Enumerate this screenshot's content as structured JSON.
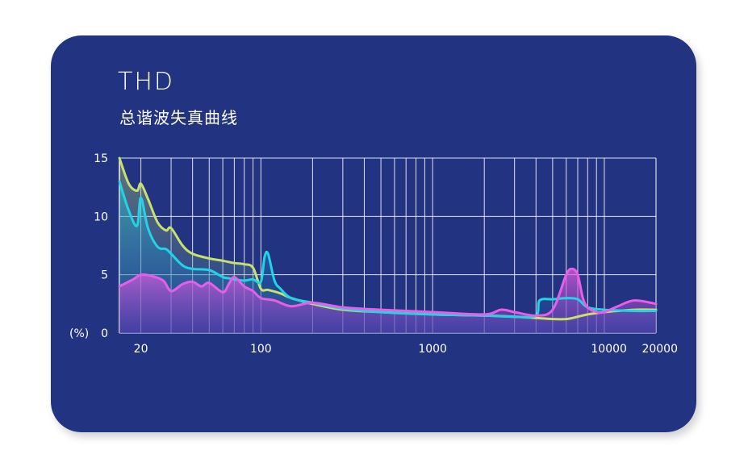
{
  "title": "THD",
  "subtitle": "总谐波失真曲线",
  "colors": {
    "background": "#223381",
    "grid": "#ffffff",
    "series_yellow": "#c8e06e",
    "series_cyan": "#22d3e6",
    "series_magenta": "#e85ee6"
  },
  "chart_data": {
    "type": "area",
    "title": "THD",
    "subtitle": "总谐波失真曲线",
    "x_scale": "log",
    "xlim": [
      15,
      20000
    ],
    "ylim": [
      0,
      15
    ],
    "ylabel": "(%)",
    "x_tick_labels": [
      "20",
      "100",
      "1000",
      "10000",
      "20000"
    ],
    "x_tick_values": [
      20,
      100,
      1000,
      10000,
      20000
    ],
    "y_tick_labels": [
      "0",
      "5",
      "10",
      "15"
    ],
    "y_tick_values": [
      0,
      5,
      10,
      15
    ],
    "grid": true,
    "series": [
      {
        "color": "#c8e06e",
        "x": [
          15,
          17,
          19,
          20,
          22,
          25,
          28,
          30,
          35,
          40,
          50,
          60,
          70,
          80,
          90,
          100,
          110,
          130,
          150,
          200,
          300,
          500,
          1000,
          2000,
          3000,
          4000,
          5000,
          6000,
          7000,
          8000,
          10000,
          15000,
          20000
        ],
        "y": [
          15,
          12.8,
          12.2,
          12.8,
          11.5,
          9.5,
          8.8,
          9.0,
          7.5,
          6.8,
          6.4,
          6.2,
          6.0,
          5.9,
          5.6,
          3.8,
          3.7,
          3.4,
          3.0,
          2.5,
          2.0,
          1.8,
          1.6,
          1.5,
          1.4,
          1.3,
          1.2,
          1.2,
          1.4,
          1.6,
          1.8,
          2.0,
          2.0
        ]
      },
      {
        "color": "#22d3e6",
        "x": [
          15,
          17,
          19,
          20,
          22,
          25,
          28,
          30,
          35,
          40,
          50,
          60,
          65,
          70,
          80,
          90,
          100,
          105,
          110,
          120,
          130,
          150,
          200,
          300,
          500,
          1000,
          2000,
          3000,
          4000,
          4200,
          5000,
          6000,
          7000,
          8000,
          10000,
          15000,
          20000
        ],
        "y": [
          13,
          10.5,
          9.2,
          11.6,
          9.0,
          7.4,
          7.2,
          6.8,
          5.8,
          5.5,
          5.4,
          4.8,
          4.7,
          4.6,
          4.5,
          4.6,
          4.4,
          6.5,
          6.8,
          4.5,
          3.8,
          3.0,
          2.6,
          2.1,
          1.8,
          1.6,
          1.5,
          1.4,
          1.5,
          2.8,
          2.9,
          3.0,
          2.9,
          2.2,
          2.0,
          1.9,
          1.9
        ]
      },
      {
        "color": "#e85ee6",
        "x": [
          15,
          18,
          20,
          23,
          27,
          30,
          35,
          40,
          45,
          50,
          60,
          65,
          70,
          80,
          90,
          100,
          120,
          150,
          200,
          300,
          500,
          1000,
          2000,
          2500,
          3000,
          4000,
          5000,
          6000,
          6500,
          7000,
          7500,
          8000,
          9000,
          10000,
          12000,
          15000,
          20000
        ],
        "y": [
          4.0,
          4.6,
          5.0,
          4.9,
          4.5,
          3.6,
          4.2,
          4.4,
          4.0,
          4.3,
          3.5,
          4.2,
          4.8,
          4.0,
          3.6,
          3.0,
          2.8,
          2.3,
          2.6,
          2.2,
          2.0,
          1.8,
          1.6,
          2.0,
          1.8,
          1.5,
          2.0,
          5.0,
          5.5,
          5.0,
          3.0,
          2.2,
          1.8,
          1.8,
          2.3,
          2.8,
          2.5
        ]
      }
    ]
  }
}
